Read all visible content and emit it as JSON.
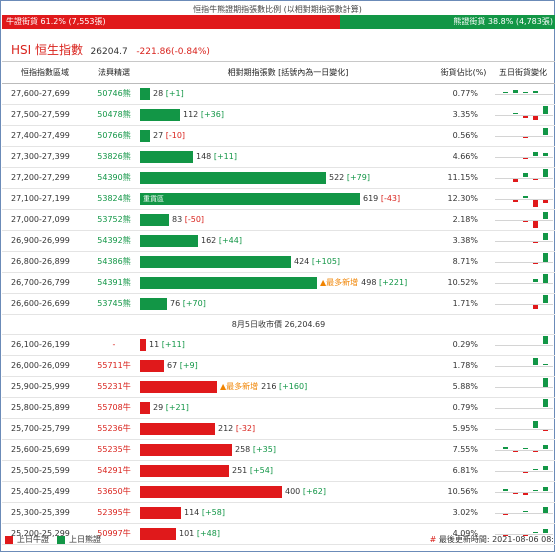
{
  "ratio": {
    "title": "恒指牛熊證期指張數比例 (以相對期指張數計算)",
    "bull_label": "牛證街貨 61.2% (7,553張)",
    "bear_label": "熊證街貨 38.8% (4,783張)",
    "bull_fraction": 0.612,
    "bull_color": "#e0191b",
    "bear_color": "#129646"
  },
  "hsi": {
    "name": "HSI 恒生指數",
    "price": "26204.7",
    "change": "-221.86(-0.84%)"
  },
  "table": {
    "headers": [
      "恒指指數區域",
      "法興精選",
      "相對期指張數 [括號內為一日變化]",
      "街貨佔比(%)",
      "五日街貨變化"
    ],
    "max_contracts": 619,
    "bear_rows": [
      {
        "range": "27,600-27,699",
        "code": "50746熊",
        "contracts": 28,
        "contracts_label": "28",
        "change": "[+1]",
        "dir": "up",
        "pct": "0.77%",
        "tag": "",
        "inline": "",
        "spark": [
          1,
          3,
          1,
          2,
          0
        ]
      },
      {
        "range": "27,500-27,599",
        "code": "50478熊",
        "contracts": 112,
        "contracts_label": "112",
        "change": "[+36]",
        "dir": "up",
        "pct": "3.35%",
        "tag": "",
        "inline": "",
        "spark": [
          0,
          1,
          -2,
          -4,
          7
        ]
      },
      {
        "range": "27,400-27,499",
        "code": "50766熊",
        "contracts": 27,
        "contracts_label": "27",
        "change": "[-10]",
        "dir": "down",
        "pct": "0.56%",
        "tag": "",
        "inline": "",
        "spark": [
          0,
          0,
          -1,
          0,
          6
        ]
      },
      {
        "range": "27,300-27,399",
        "code": "53826熊",
        "contracts": 148,
        "contracts_label": "148",
        "change": "[+11]",
        "dir": "up",
        "pct": "4.66%",
        "tag": "",
        "inline": "",
        "spark": [
          0,
          0,
          -1,
          4,
          3
        ]
      },
      {
        "range": "27,200-27,299",
        "code": "54390熊",
        "contracts": 522,
        "contracts_label": "522",
        "change": "[+79]",
        "dir": "up",
        "pct": "11.15%",
        "tag": "",
        "inline": "",
        "spark": [
          0,
          -3,
          4,
          -1,
          7
        ]
      },
      {
        "range": "27,100-27,199",
        "code": "53824熊",
        "contracts": 619,
        "contracts_label": "619",
        "change": "[-43]",
        "dir": "down",
        "pct": "12.30%",
        "tag": "",
        "inline": "重貨區",
        "spark": [
          0,
          -2,
          2,
          -6,
          -3
        ]
      },
      {
        "range": "27,000-27,099",
        "code": "53752熊",
        "contracts": 83,
        "contracts_label": "83",
        "change": "[-50]",
        "dir": "down",
        "pct": "2.18%",
        "tag": "",
        "inline": "",
        "spark": [
          0,
          0,
          -1,
          -6,
          6
        ]
      },
      {
        "range": "26,900-26,999",
        "code": "54392熊",
        "contracts": 162,
        "contracts_label": "162",
        "change": "[+44]",
        "dir": "up",
        "pct": "3.38%",
        "tag": "",
        "inline": "",
        "spark": [
          0,
          0,
          0,
          -1,
          6
        ]
      },
      {
        "range": "26,800-26,899",
        "code": "54386熊",
        "contracts": 424,
        "contracts_label": "424",
        "change": "[+105]",
        "dir": "up",
        "pct": "8.71%",
        "tag": "",
        "inline": "",
        "spark": [
          0,
          0,
          0,
          -1,
          8
        ]
      },
      {
        "range": "26,700-26,799",
        "code": "54391熊",
        "contracts": 498,
        "contracts_label": "498",
        "change": "[+221]",
        "dir": "up",
        "pct": "10.52%",
        "tag": "▲最多新增",
        "inline": "",
        "spark": [
          0,
          0,
          0,
          3,
          8
        ]
      },
      {
        "range": "26,600-26,699",
        "code": "53745熊",
        "contracts": 76,
        "contracts_label": "76",
        "change": "[+70]",
        "dir": "up",
        "pct": "1.71%",
        "tag": "",
        "inline": "",
        "spark": [
          0,
          0,
          0,
          -4,
          7
        ]
      }
    ],
    "separator": "8月5日收市價 26,204.69",
    "bull_rows": [
      {
        "range": "26,100-26,199",
        "code": "-",
        "contracts": 11,
        "contracts_label": "11",
        "change": "[+11]",
        "dir": "up",
        "pct": "0.29%",
        "tag": "",
        "spark": [
          0,
          0,
          0,
          0,
          7
        ]
      },
      {
        "range": "26,000-26,099",
        "code": "55711牛",
        "contracts": 67,
        "contracts_label": "67",
        "change": "[+9]",
        "dir": "up",
        "pct": "1.78%",
        "tag": "",
        "spark": [
          0,
          0,
          0,
          6,
          1
        ]
      },
      {
        "range": "25,900-25,999",
        "code": "55231牛",
        "contracts": 216,
        "contracts_label": "216",
        "change": "[+160]",
        "dir": "up",
        "pct": "5.88%",
        "tag": "▲最多新增",
        "spark": [
          0,
          0,
          0,
          0,
          8
        ]
      },
      {
        "range": "25,800-25,899",
        "code": "55708牛",
        "contracts": 29,
        "contracts_label": "29",
        "change": "[+21]",
        "dir": "up",
        "pct": "0.79%",
        "tag": "",
        "spark": [
          0,
          0,
          0,
          0,
          7
        ]
      },
      {
        "range": "25,700-25,799",
        "code": "55236牛",
        "contracts": 212,
        "contracts_label": "212",
        "change": "[-32]",
        "dir": "down",
        "pct": "5.95%",
        "tag": "",
        "spark": [
          0,
          0,
          0,
          6,
          -1
        ]
      },
      {
        "range": "25,600-25,699",
        "code": "55235牛",
        "contracts": 258,
        "contracts_label": "258",
        "change": "[+35]",
        "dir": "up",
        "pct": "7.55%",
        "tag": "",
        "spark": [
          2,
          -1,
          1,
          -1,
          4
        ]
      },
      {
        "range": "25,500-25,599",
        "code": "54291牛",
        "contracts": 251,
        "contracts_label": "251",
        "change": "[+54]",
        "dir": "up",
        "pct": "6.81%",
        "tag": "",
        "spark": [
          0,
          0,
          -1,
          1,
          4
        ]
      },
      {
        "range": "25,400-25,499",
        "code": "53650牛",
        "contracts": 400,
        "contracts_label": "400",
        "change": "[+62]",
        "dir": "up",
        "pct": "10.56%",
        "tag": "",
        "spark": [
          2,
          -1,
          -2,
          1,
          4
        ]
      },
      {
        "range": "25,300-25,399",
        "code": "52395牛",
        "contracts": 114,
        "contracts_label": "114",
        "change": "[+58]",
        "dir": "up",
        "pct": "3.02%",
        "tag": "",
        "spark": [
          -1,
          0,
          1,
          0,
          5
        ]
      },
      {
        "range": "25,200-25,299",
        "code": "50997牛",
        "contracts": 101,
        "contracts_label": "101",
        "change": "[+48]",
        "dir": "up",
        "pct": "4.09%",
        "tag": "",
        "spark": [
          -1,
          0,
          -1,
          1,
          4
        ]
      }
    ]
  },
  "legend": {
    "bull": "上日牛證",
    "bear": "上日熊證"
  },
  "updated": "最後更新時間: 2021-08-06 08:"
}
